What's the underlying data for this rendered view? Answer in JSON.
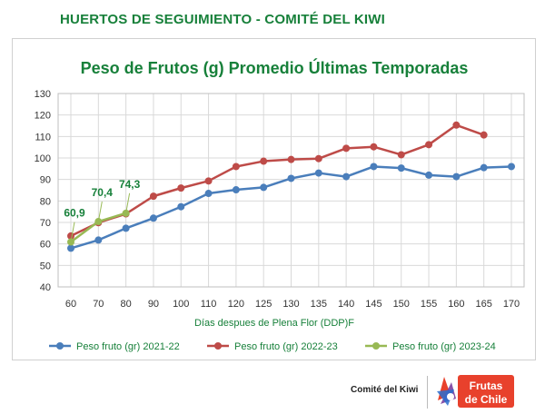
{
  "header": {
    "title": "HUERTOS DE SEGUIMIENTO -  COMITÉ DEL KIWI"
  },
  "footer": {
    "brand": "Comité del Kiwi",
    "logo_text_1": "Frutas",
    "logo_text_2": "de Chile"
  },
  "chart_data": {
    "type": "line",
    "title": "Peso de Frutos (g) Promedio Últimas Temporadas",
    "xlabel": "Días despues de Plena Flor (DDP)F",
    "ylabel": "",
    "categories": [
      "60",
      "70",
      "80",
      "90",
      "100",
      "110",
      "120",
      "125",
      "130",
      "135",
      "140",
      "145",
      "150",
      "155",
      "160",
      "165",
      "170"
    ],
    "ylim": [
      40,
      130
    ],
    "yticks": [
      40,
      50,
      60,
      70,
      80,
      90,
      100,
      110,
      120,
      130
    ],
    "grid": true,
    "legend_position": "bottom",
    "series": [
      {
        "name": "Peso fruto (gr) 2021-22",
        "color": "#4a7ebb",
        "values": [
          58,
          61.8,
          67.3,
          72,
          77.3,
          83.5,
          85.2,
          86.3,
          90.5,
          93,
          91.3,
          96,
          95.3,
          92,
          91.3,
          95.5,
          96
        ]
      },
      {
        "name": "Peso fruto (gr) 2022-23",
        "color": "#be4b48",
        "values": [
          63.7,
          69.9,
          74,
          82.2,
          86,
          89.3,
          96,
          98.5,
          99.3,
          99.7,
          104.5,
          105.2,
          101.5,
          106.2,
          115.3,
          110.7,
          null
        ]
      },
      {
        "name": "Peso fruto (gr) 2023-24",
        "color": "#98b954",
        "values": [
          60.9,
          70.4,
          74.3,
          null,
          null,
          null,
          null,
          null,
          null,
          null,
          null,
          null,
          null,
          null,
          null,
          null,
          null
        ],
        "data_labels": [
          "60,9",
          "70,4",
          "74,3"
        ]
      }
    ]
  }
}
